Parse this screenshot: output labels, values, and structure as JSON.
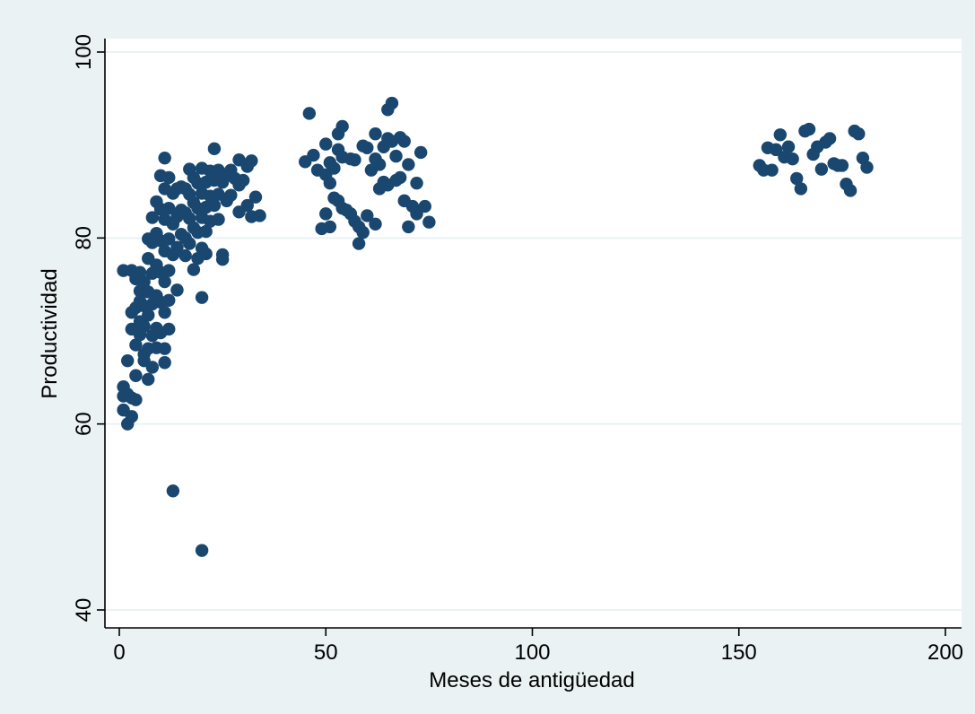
{
  "chart_data": {
    "type": "scatter",
    "title": "",
    "xlabel": "Meses de antigüedad",
    "ylabel": "Productividad",
    "xlim": [
      -3,
      203
    ],
    "ylim": [
      39,
      101
    ],
    "xticks": [
      0,
      50,
      100,
      150,
      200
    ],
    "yticks": [
      40,
      60,
      80,
      100
    ],
    "grid": "horizontal",
    "legend": "none",
    "colors": {
      "background": "#eaf2f3",
      "plot_area": "#ffffff",
      "marker": "#1a476f",
      "grid": "#eaf2f3",
      "axis": "#000000"
    },
    "series": [
      {
        "points": [
          [
            1,
            76.5
          ],
          [
            1,
            64
          ],
          [
            1,
            63
          ],
          [
            1,
            61.5
          ],
          [
            2,
            60
          ],
          [
            2,
            66.8
          ],
          [
            2,
            63.2
          ],
          [
            3,
            60.8
          ],
          [
            3,
            62.8
          ],
          [
            3,
            72
          ],
          [
            3,
            76.5
          ],
          [
            3,
            70.2
          ],
          [
            4,
            62.6
          ],
          [
            4,
            68.5
          ],
          [
            4,
            72.5
          ],
          [
            4,
            75.6
          ],
          [
            4,
            65.2
          ],
          [
            5,
            74.3
          ],
          [
            5,
            73.2
          ],
          [
            5,
            69.6
          ],
          [
            5,
            76.3
          ],
          [
            5,
            71
          ],
          [
            6,
            70.5
          ],
          [
            6,
            66.8
          ],
          [
            6,
            72.7
          ],
          [
            6,
            75.3
          ],
          [
            6,
            67.5
          ],
          [
            7,
            79.9
          ],
          [
            7,
            77.8
          ],
          [
            7,
            74.2
          ],
          [
            7,
            71.7
          ],
          [
            7,
            68.1
          ],
          [
            7,
            64.8
          ],
          [
            8,
            79.5
          ],
          [
            8,
            76.2
          ],
          [
            8,
            72.9
          ],
          [
            8,
            69.5
          ],
          [
            8,
            66.1
          ],
          [
            8,
            82.2
          ],
          [
            9,
            83.9
          ],
          [
            9,
            80.5
          ],
          [
            9,
            77.1
          ],
          [
            9,
            73.8
          ],
          [
            9,
            70.3
          ],
          [
            9,
            68.2
          ],
          [
            10,
            86.7
          ],
          [
            10,
            83.1
          ],
          [
            10,
            79.7
          ],
          [
            10,
            76.3
          ],
          [
            10,
            73.1
          ],
          [
            10,
            69.8
          ],
          [
            11,
            88.6
          ],
          [
            11,
            85.3
          ],
          [
            11,
            82
          ],
          [
            11,
            78.6
          ],
          [
            11,
            75.3
          ],
          [
            11,
            72
          ],
          [
            11,
            68.1
          ],
          [
            11,
            66.6
          ],
          [
            12,
            86.5
          ],
          [
            12,
            83.2
          ],
          [
            12,
            79.9
          ],
          [
            12,
            76.5
          ],
          [
            12,
            73.3
          ],
          [
            12,
            70.2
          ],
          [
            13,
            84.8
          ],
          [
            13,
            81.5
          ],
          [
            13,
            78.2
          ],
          [
            13,
            52.8
          ],
          [
            14,
            85.3
          ],
          [
            14,
            82.3
          ],
          [
            14,
            79
          ],
          [
            14,
            74.4
          ],
          [
            15,
            85.5
          ],
          [
            15,
            83
          ],
          [
            15,
            80.4
          ],
          [
            16,
            85.3
          ],
          [
            16,
            82.7
          ],
          [
            16,
            80
          ],
          [
            16,
            78.1
          ],
          [
            17,
            87.4
          ],
          [
            17,
            84.7
          ],
          [
            17,
            82.1
          ],
          [
            17,
            79.4
          ],
          [
            18,
            86.5
          ],
          [
            18,
            83.8
          ],
          [
            18,
            81.1
          ],
          [
            18,
            76.6
          ],
          [
            19,
            85.9
          ],
          [
            19,
            83.2
          ],
          [
            19,
            80.6
          ],
          [
            19,
            77.8
          ],
          [
            20,
            87.5
          ],
          [
            20,
            84.8
          ],
          [
            20,
            82.2
          ],
          [
            20,
            78.9
          ],
          [
            20,
            73.6
          ],
          [
            20,
            46.4
          ],
          [
            21,
            86
          ],
          [
            21,
            83.3
          ],
          [
            21,
            80.7
          ],
          [
            21,
            78.3
          ],
          [
            22,
            87.2
          ],
          [
            22,
            84.5
          ],
          [
            22,
            81.8
          ],
          [
            23,
            89.6
          ],
          [
            23,
            86.2
          ],
          [
            23,
            83.5
          ],
          [
            24,
            87.3
          ],
          [
            24,
            84.7
          ],
          [
            24,
            82
          ],
          [
            25,
            86
          ],
          [
            25,
            78.2
          ],
          [
            25,
            77.7
          ],
          [
            26,
            86.7
          ],
          [
            26,
            84
          ],
          [
            27,
            87.3
          ],
          [
            27,
            84.6
          ],
          [
            28,
            86.4
          ],
          [
            29,
            88.4
          ],
          [
            29,
            85.7
          ],
          [
            29,
            82.8
          ],
          [
            30,
            86.2
          ],
          [
            31,
            87.7
          ],
          [
            31,
            83.5
          ],
          [
            32,
            88.3
          ],
          [
            32,
            82.3
          ],
          [
            33,
            84.4
          ],
          [
            34,
            82.4
          ],
          [
            45,
            88.2
          ],
          [
            46,
            93.4
          ],
          [
            47,
            88.9
          ],
          [
            48,
            87.3
          ],
          [
            49,
            81
          ],
          [
            50,
            90.1
          ],
          [
            50,
            86.8
          ],
          [
            50,
            82.6
          ],
          [
            51,
            88.1
          ],
          [
            51,
            85.9
          ],
          [
            51,
            81.2
          ],
          [
            52,
            87.5
          ],
          [
            52,
            84.3
          ],
          [
            53,
            91.2
          ],
          [
            53,
            89.5
          ],
          [
            53,
            84
          ],
          [
            54,
            92
          ],
          [
            54,
            88.7
          ],
          [
            54,
            83.2
          ],
          [
            55,
            83
          ],
          [
            56,
            88.5
          ],
          [
            56,
            82.6
          ],
          [
            57,
            88.4
          ],
          [
            57,
            81.8
          ],
          [
            58,
            81.2
          ],
          [
            58,
            79.4
          ],
          [
            59,
            89.9
          ],
          [
            59,
            80.6
          ],
          [
            60,
            89.7
          ],
          [
            60,
            82.4
          ],
          [
            61,
            87.3
          ],
          [
            62,
            91.2
          ],
          [
            62,
            88.5
          ],
          [
            62,
            81.5
          ],
          [
            63,
            87.9
          ],
          [
            63,
            85.3
          ],
          [
            64,
            89.8
          ],
          [
            64,
            86
          ],
          [
            65,
            93.8
          ],
          [
            65,
            90.7
          ],
          [
            65,
            85.7
          ],
          [
            66,
            94.5
          ],
          [
            66,
            90.4
          ],
          [
            67,
            88.8
          ],
          [
            67,
            86.2
          ],
          [
            68,
            90.8
          ],
          [
            68,
            86.5
          ],
          [
            69,
            90.4
          ],
          [
            69,
            84
          ],
          [
            70,
            87.9
          ],
          [
            70,
            81.2
          ],
          [
            71,
            83.4
          ],
          [
            72,
            85.9
          ],
          [
            72,
            82.6
          ],
          [
            73,
            89.2
          ],
          [
            74,
            83.4
          ],
          [
            75,
            81.7
          ],
          [
            155,
            87.8
          ],
          [
            156,
            87.3
          ],
          [
            157,
            89.7
          ],
          [
            158,
            87.3
          ],
          [
            159,
            89.5
          ],
          [
            160,
            91.1
          ],
          [
            161,
            88.7
          ],
          [
            162,
            89.8
          ],
          [
            163,
            88.5
          ],
          [
            164,
            86.4
          ],
          [
            165,
            85.3
          ],
          [
            166,
            91.5
          ],
          [
            167,
            91.7
          ],
          [
            168,
            89
          ],
          [
            169,
            89.8
          ],
          [
            170,
            87.4
          ],
          [
            171,
            90.3
          ],
          [
            172,
            90.7
          ],
          [
            173,
            88
          ],
          [
            174,
            87.8
          ],
          [
            175,
            87.8
          ],
          [
            176,
            85.8
          ],
          [
            177,
            85.1
          ],
          [
            178,
            91.5
          ],
          [
            179,
            91.2
          ],
          [
            180,
            88.6
          ],
          [
            181,
            87.6
          ]
        ]
      }
    ]
  }
}
